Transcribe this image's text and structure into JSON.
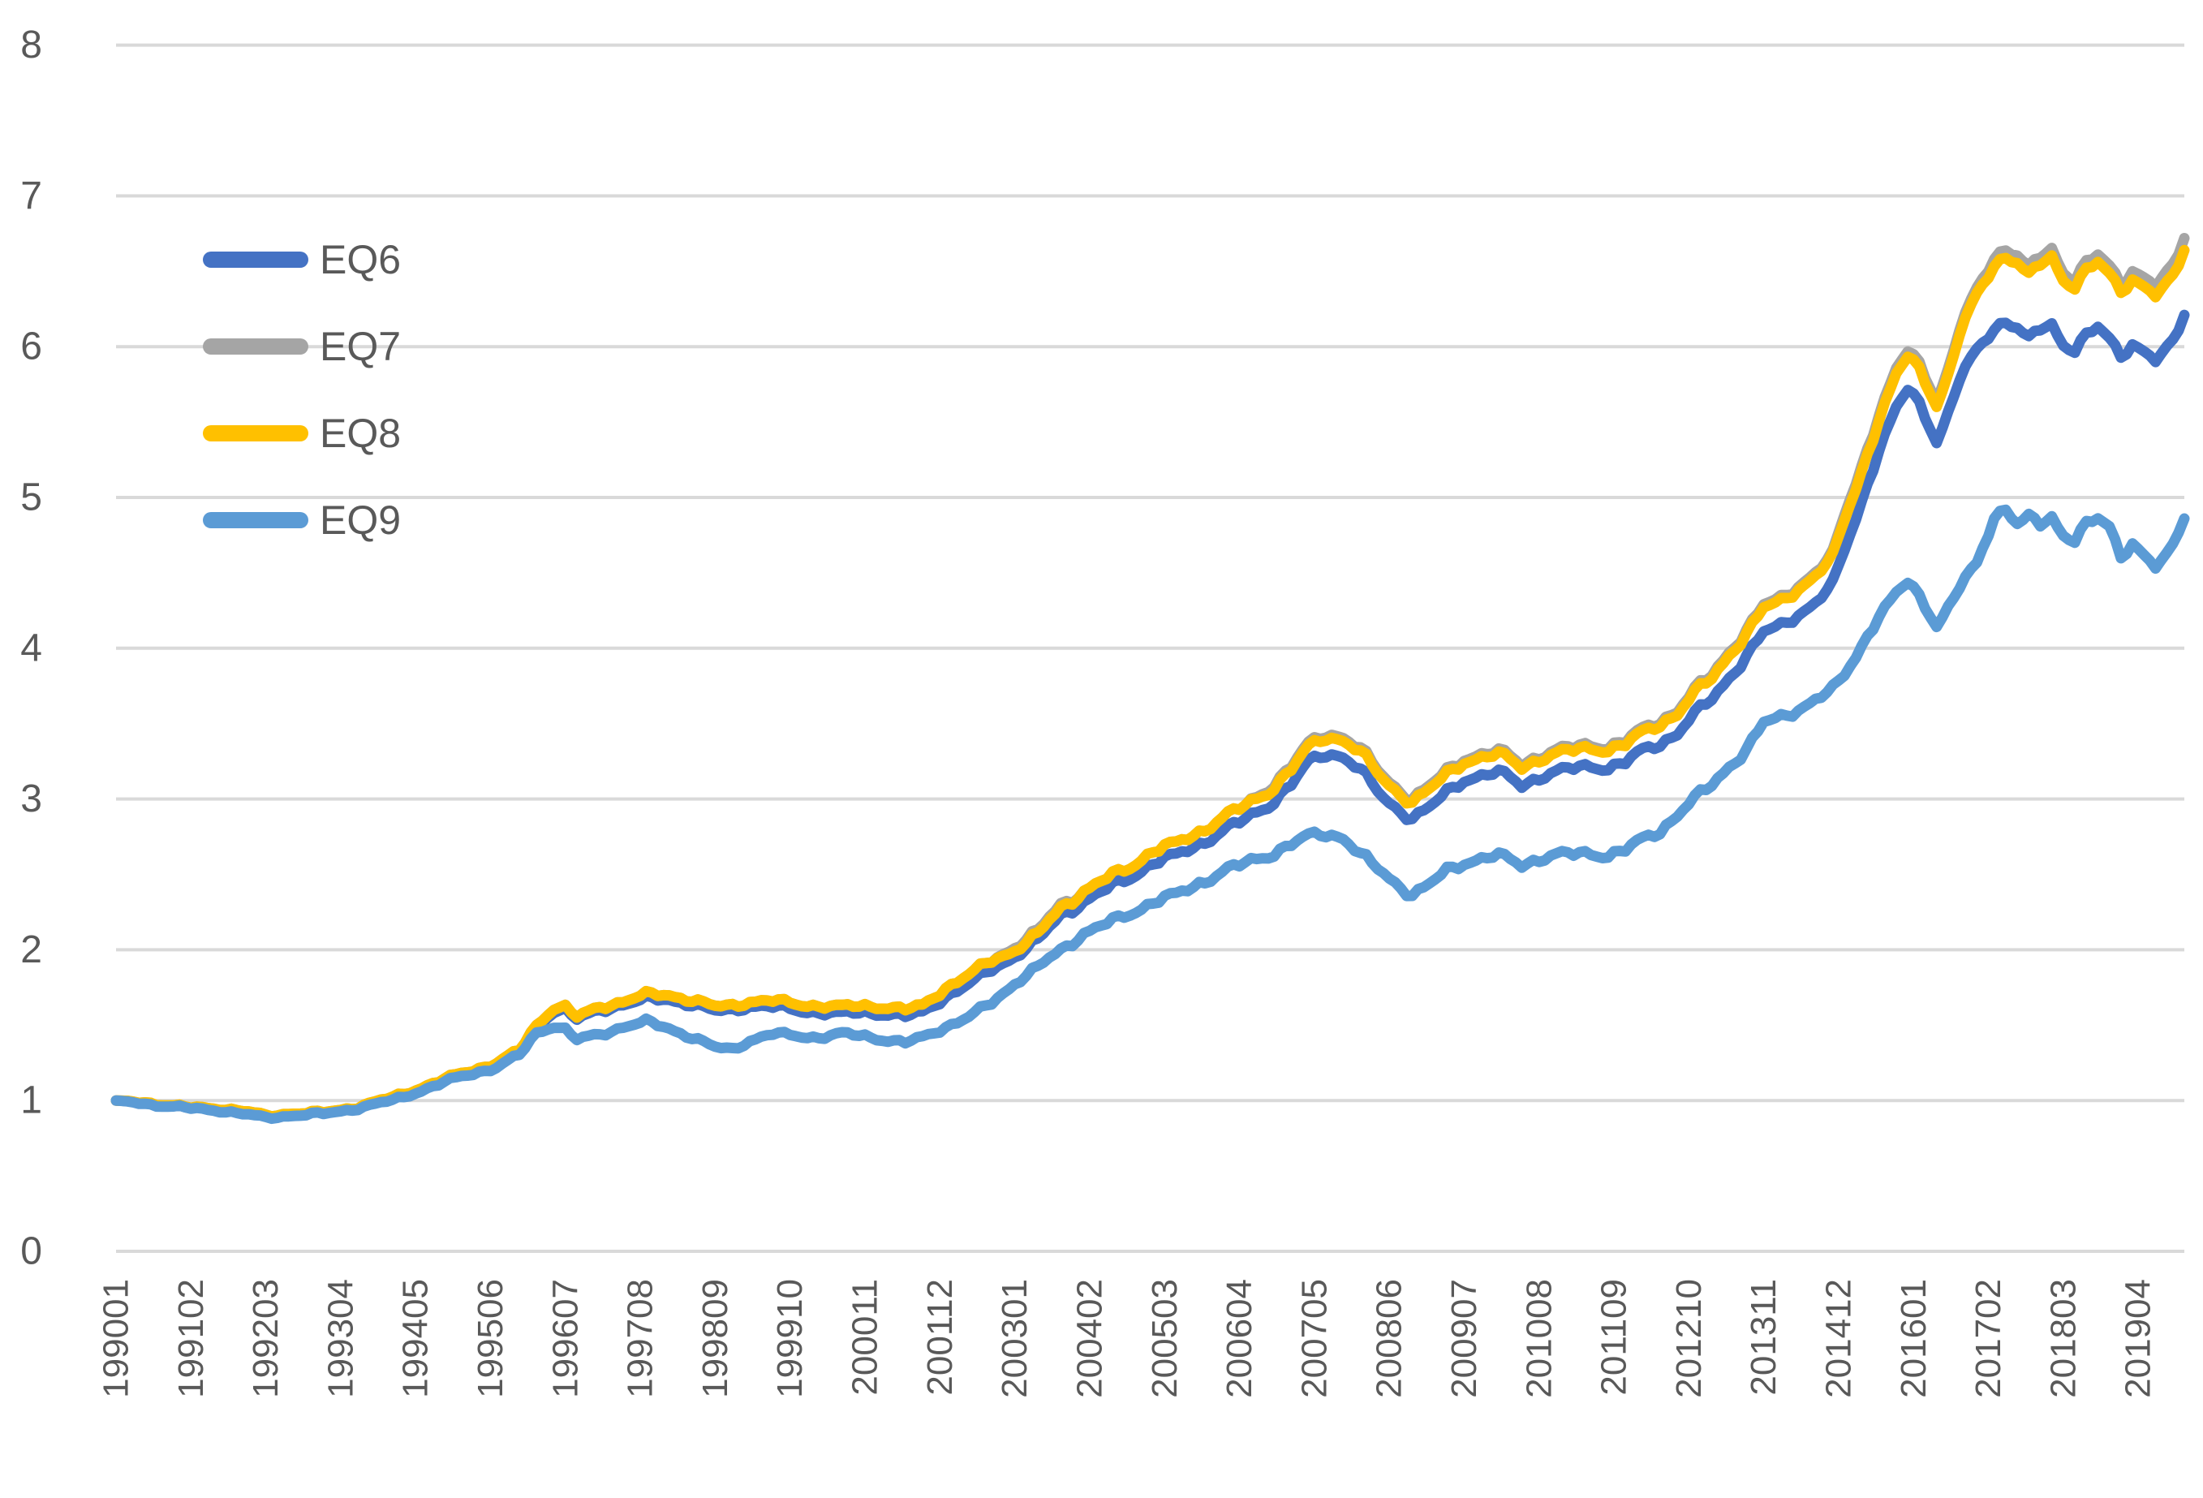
{
  "chart_data": {
    "type": "line",
    "title": "",
    "xlabel": "",
    "ylabel": "",
    "ylim": [
      0,
      8
    ],
    "y_ticks": [
      "0",
      "1",
      "2",
      "3",
      "4",
      "5",
      "6",
      "7",
      "8"
    ],
    "grid": "horizontal-only",
    "legend_position": "upper-left-inside",
    "x_label_rotation_deg": -90,
    "x_labels": [
      "199001",
      "199102",
      "199203",
      "199304",
      "199405",
      "199506",
      "199607",
      "199708",
      "199809",
      "199910",
      "200011",
      "200112",
      "200301",
      "200402",
      "200503",
      "200604",
      "200705",
      "200806",
      "200907",
      "201008",
      "201109",
      "201210",
      "201311",
      "201412",
      "201601",
      "201702",
      "201803",
      "201904"
    ],
    "x_label_interval_months": 13,
    "months_total": 360,
    "x_range_note": "monthly index 0 = 199001, 359 = 201912",
    "anchor_months": [
      0,
      6,
      12,
      18,
      22,
      26,
      30,
      36,
      42,
      48,
      54,
      60,
      66,
      70,
      73,
      76,
      78,
      80,
      84,
      88,
      92,
      96,
      100,
      104,
      107,
      110,
      114,
      118,
      122,
      126,
      130,
      134,
      137,
      140,
      144,
      148,
      152,
      156,
      160,
      164,
      168,
      172,
      176,
      180,
      184,
      188,
      192,
      196,
      200,
      204,
      207,
      210,
      213,
      216,
      220,
      223,
      225,
      228,
      231,
      234,
      238,
      241,
      244,
      247,
      250,
      253,
      256,
      259,
      262,
      265,
      268,
      271,
      274,
      277,
      280,
      283,
      286,
      289,
      292,
      295,
      298,
      300,
      303,
      306,
      309,
      311,
      313,
      316,
      318,
      320,
      323,
      326,
      328,
      330,
      332,
      334,
      336,
      338,
      340,
      342,
      344,
      346,
      348,
      350,
      352,
      354,
      356,
      358,
      359
    ],
    "series": [
      {
        "name": "EQ6",
        "color": "#4472C4",
        "values": [
          1.0,
          0.98,
          0.95,
          0.945,
          0.925,
          0.895,
          0.91,
          0.915,
          0.955,
          1.015,
          1.095,
          1.175,
          1.245,
          1.325,
          1.49,
          1.6,
          1.6,
          1.535,
          1.6,
          1.64,
          1.67,
          1.67,
          1.64,
          1.59,
          1.6,
          1.63,
          1.62,
          1.6,
          1.585,
          1.575,
          1.585,
          1.575,
          1.555,
          1.585,
          1.69,
          1.77,
          1.87,
          1.96,
          2.06,
          2.23,
          2.32,
          2.4,
          2.48,
          2.58,
          2.62,
          2.7,
          2.79,
          2.86,
          2.96,
          3.1,
          3.24,
          3.3,
          3.29,
          3.19,
          3.0,
          2.92,
          2.88,
          2.94,
          3.04,
          3.13,
          3.17,
          3.16,
          3.09,
          3.15,
          3.18,
          3.2,
          3.22,
          3.21,
          3.24,
          3.32,
          3.37,
          3.44,
          3.56,
          3.66,
          3.81,
          3.95,
          4.1,
          4.15,
          4.23,
          4.3,
          4.42,
          4.65,
          4.98,
          5.32,
          5.58,
          5.72,
          5.63,
          5.38,
          5.55,
          5.78,
          5.98,
          6.13,
          6.17,
          6.12,
          6.04,
          6.12,
          6.15,
          6.02,
          5.98,
          6.07,
          6.12,
          6.05,
          5.95,
          6.02,
          5.97,
          5.9,
          5.97,
          6.12,
          6.22
        ]
      },
      {
        "name": "EQ7",
        "color": "#A5A5A5",
        "values": [
          1.0,
          0.985,
          0.955,
          0.95,
          0.93,
          0.9,
          0.915,
          0.92,
          0.96,
          1.02,
          1.1,
          1.18,
          1.25,
          1.33,
          1.5,
          1.62,
          1.62,
          1.55,
          1.62,
          1.66,
          1.7,
          1.7,
          1.67,
          1.62,
          1.63,
          1.66,
          1.66,
          1.64,
          1.63,
          1.62,
          1.63,
          1.62,
          1.6,
          1.63,
          1.75,
          1.83,
          1.93,
          2.02,
          2.12,
          2.3,
          2.39,
          2.47,
          2.55,
          2.66,
          2.7,
          2.78,
          2.88,
          2.95,
          3.07,
          3.22,
          3.36,
          3.43,
          3.42,
          3.33,
          3.14,
          3.05,
          3.01,
          3.08,
          3.18,
          3.27,
          3.31,
          3.3,
          3.23,
          3.29,
          3.32,
          3.34,
          3.36,
          3.35,
          3.38,
          3.46,
          3.52,
          3.59,
          3.72,
          3.82,
          3.98,
          4.12,
          4.28,
          4.33,
          4.42,
          4.5,
          4.62,
          4.885,
          5.215,
          5.555,
          5.835,
          5.975,
          5.895,
          5.655,
          5.835,
          6.115,
          6.385,
          6.6,
          6.65,
          6.6,
          6.51,
          6.6,
          6.65,
          6.5,
          6.45,
          6.55,
          6.6,
          6.53,
          6.43,
          6.505,
          6.46,
          6.395,
          6.47,
          6.625,
          6.73
        ]
      },
      {
        "name": "EQ8",
        "color": "#FFC000",
        "values": [
          1.0,
          0.985,
          0.955,
          0.95,
          0.93,
          0.9,
          0.915,
          0.92,
          0.96,
          1.02,
          1.1,
          1.18,
          1.25,
          1.33,
          1.5,
          1.62,
          1.62,
          1.55,
          1.62,
          1.66,
          1.7,
          1.7,
          1.67,
          1.62,
          1.63,
          1.66,
          1.66,
          1.64,
          1.63,
          1.62,
          1.63,
          1.62,
          1.6,
          1.63,
          1.75,
          1.83,
          1.93,
          2.0,
          2.1,
          2.28,
          2.39,
          2.47,
          2.55,
          2.66,
          2.7,
          2.78,
          2.88,
          2.95,
          3.05,
          3.2,
          3.34,
          3.41,
          3.4,
          3.31,
          3.12,
          3.03,
          2.99,
          3.06,
          3.16,
          3.25,
          3.29,
          3.28,
          3.21,
          3.27,
          3.3,
          3.32,
          3.34,
          3.33,
          3.36,
          3.44,
          3.5,
          3.57,
          3.7,
          3.8,
          3.96,
          4.1,
          4.26,
          4.31,
          4.4,
          4.48,
          4.6,
          4.85,
          5.18,
          5.52,
          5.8,
          5.94,
          5.86,
          5.62,
          5.8,
          6.08,
          6.35,
          6.55,
          6.6,
          6.55,
          6.46,
          6.55,
          6.6,
          6.45,
          6.4,
          6.5,
          6.55,
          6.48,
          6.38,
          6.45,
          6.4,
          6.33,
          6.4,
          6.55,
          6.65
        ]
      },
      {
        "name": "EQ9",
        "color": "#5B9BD5",
        "values": [
          1.0,
          0.975,
          0.95,
          0.935,
          0.91,
          0.885,
          0.9,
          0.91,
          0.95,
          1.0,
          1.08,
          1.16,
          1.22,
          1.3,
          1.45,
          1.5,
          1.47,
          1.4,
          1.44,
          1.49,
          1.52,
          1.48,
          1.42,
          1.35,
          1.34,
          1.4,
          1.44,
          1.43,
          1.42,
          1.44,
          1.43,
          1.4,
          1.38,
          1.42,
          1.49,
          1.55,
          1.65,
          1.78,
          1.88,
          2.0,
          2.11,
          2.17,
          2.24,
          2.32,
          2.36,
          2.44,
          2.52,
          2.57,
          2.63,
          2.7,
          2.75,
          2.77,
          2.75,
          2.63,
          2.5,
          2.42,
          2.37,
          2.43,
          2.52,
          2.58,
          2.62,
          2.61,
          2.56,
          2.61,
          2.63,
          2.63,
          2.64,
          2.63,
          2.66,
          2.73,
          2.79,
          2.9,
          3.0,
          3.09,
          3.22,
          3.33,
          3.5,
          3.54,
          3.6,
          3.66,
          3.72,
          3.82,
          4.02,
          4.22,
          4.35,
          4.44,
          4.35,
          4.16,
          4.26,
          4.4,
          4.56,
          4.88,
          4.93,
          4.82,
          4.86,
          4.82,
          4.87,
          4.76,
          4.72,
          4.82,
          4.85,
          4.8,
          4.62,
          4.7,
          4.62,
          4.53,
          4.6,
          4.78,
          4.87
        ]
      }
    ],
    "colors": {
      "gridline": "#D9D9D9",
      "axis_text": "#595959",
      "background": "#FFFFFF"
    }
  },
  "legend": {
    "items": [
      {
        "label": "EQ6"
      },
      {
        "label": "EQ7"
      },
      {
        "label": "EQ8"
      },
      {
        "label": "EQ9"
      }
    ]
  }
}
